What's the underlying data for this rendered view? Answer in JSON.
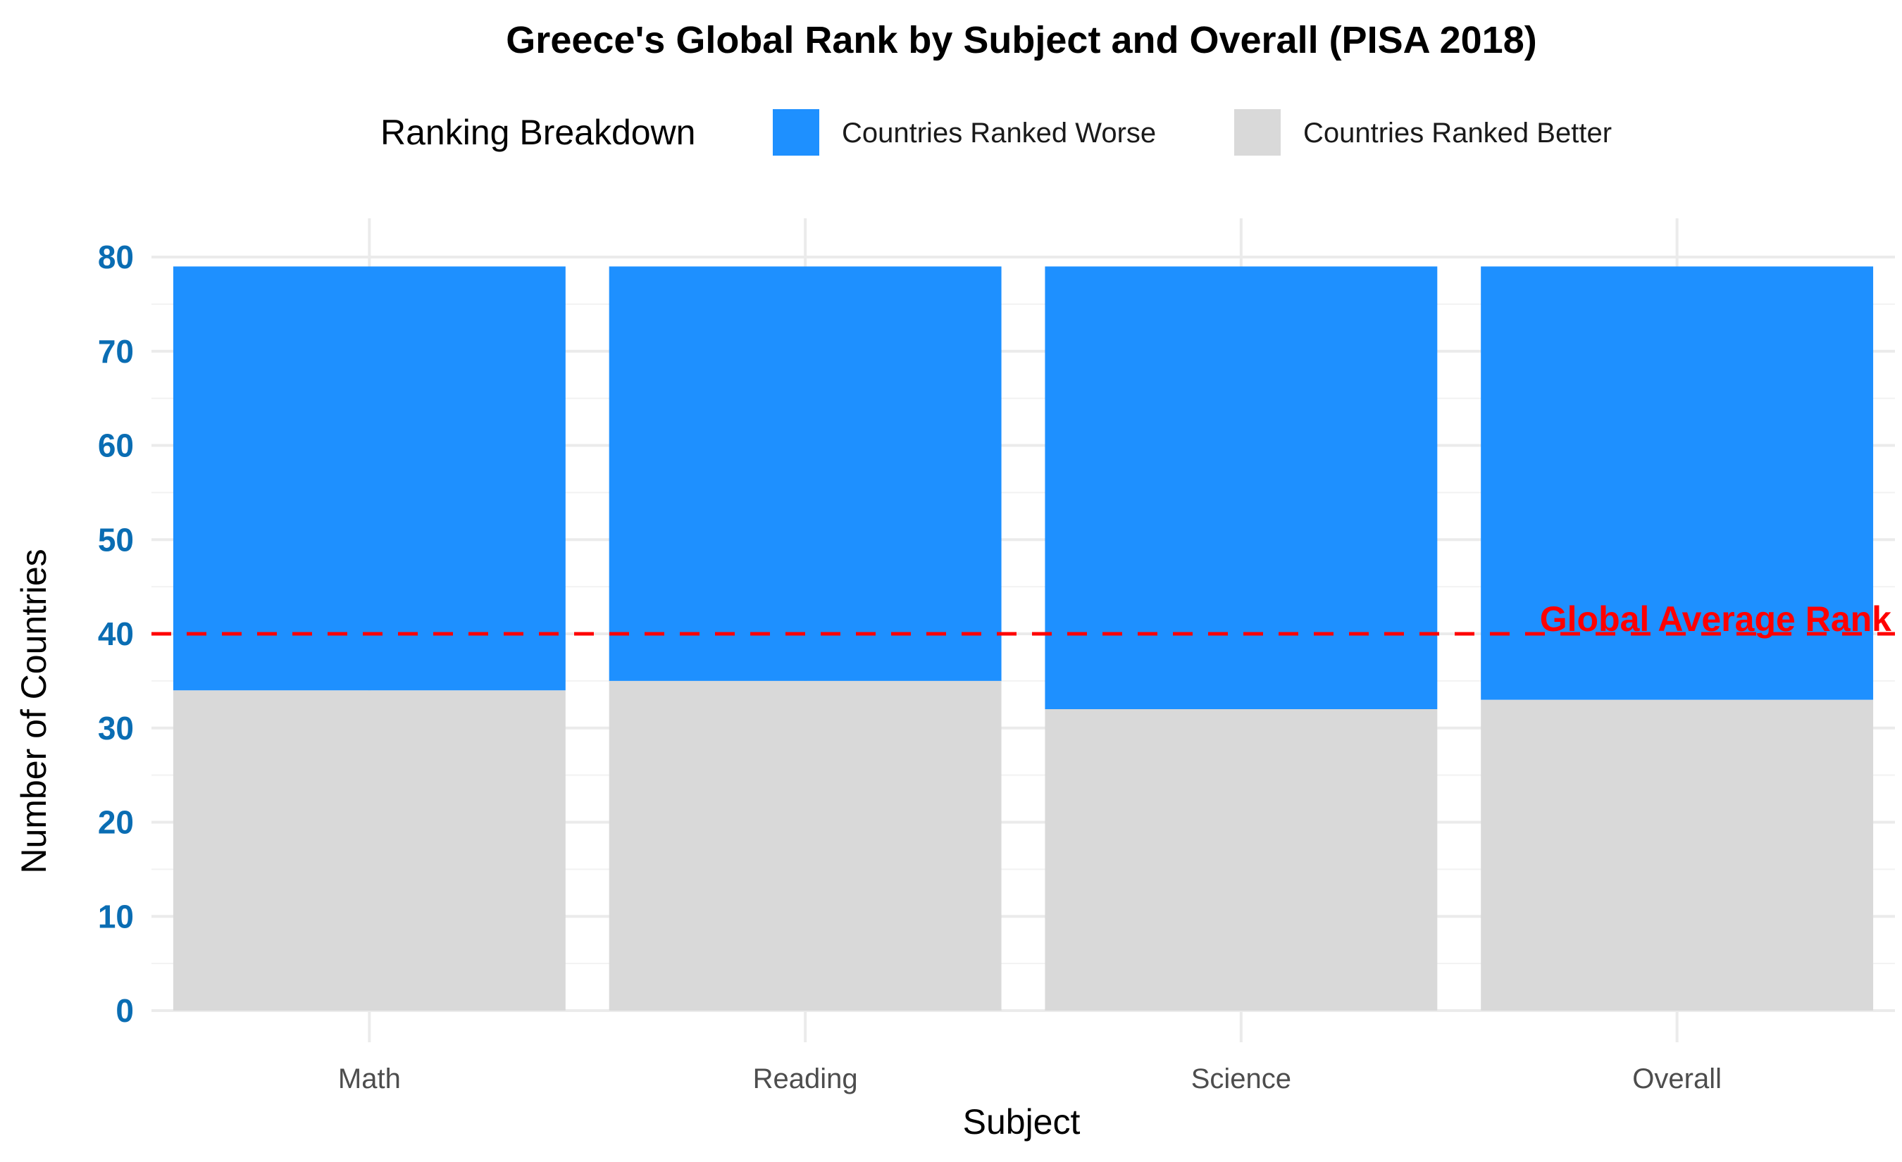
{
  "chart_data": {
    "type": "bar",
    "stacked": true,
    "title": "Greece's Global Rank by Subject and Overall (PISA 2018)",
    "xlabel": "Subject",
    "ylabel": "Number of Countries",
    "categories": [
      "Math",
      "Reading",
      "Science",
      "Overall"
    ],
    "series": [
      {
        "name": "Countries Ranked Better",
        "values": [
          34,
          35,
          32,
          33
        ],
        "color": "#d9d9d9"
      },
      {
        "name": "Countries Ranked Worse",
        "values": [
          45,
          44,
          47,
          46
        ],
        "color": "#1e90ff"
      }
    ],
    "legend": {
      "title": "Ranking Breakdown",
      "placement": "top",
      "order": [
        "Countries Ranked Worse",
        "Countries Ranked Better"
      ]
    },
    "reference_line": {
      "value": 40,
      "label": "Global Average Rank",
      "color": "#ff0000",
      "style": "dashed"
    },
    "ylim": [
      0,
      80
    ],
    "yticks": [
      0,
      10,
      20,
      30,
      40,
      50,
      60,
      70,
      80
    ],
    "grid": true
  }
}
